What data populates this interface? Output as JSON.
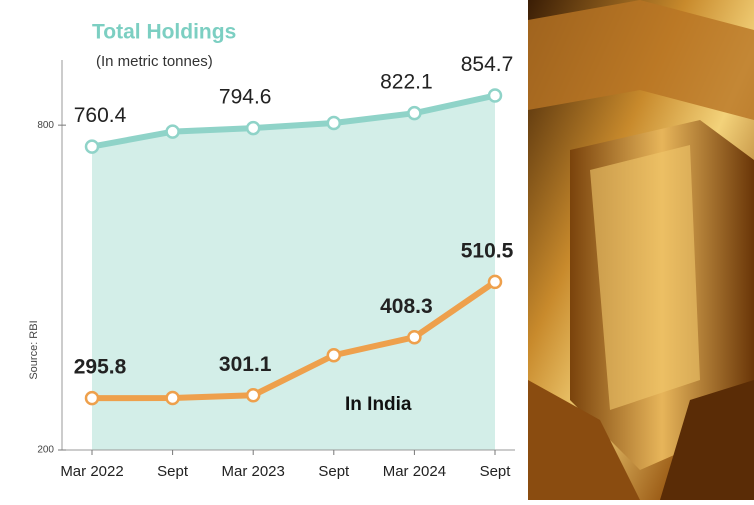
{
  "chart_data": {
    "type": "line",
    "title": "Total Holdings",
    "subtitle": "(In metric tonnes)",
    "source": "Source: RBI",
    "annotation": "In India",
    "categories": [
      "Mar 2022",
      "Sept",
      "Mar 2023",
      "Sept",
      "Mar 2024",
      "Sept"
    ],
    "series": [
      {
        "name": "Total Holdings",
        "color": "#8fd3c8",
        "fill": "#d3eee8",
        "values": [
          760.4,
          788,
          794.6,
          804,
          822.1,
          854.7
        ],
        "value_labels": [
          "760.4",
          null,
          "794.6",
          null,
          "822.1",
          "854.7"
        ]
      },
      {
        "name": "In India",
        "color": "#eea04c",
        "fill": "#fbe1c7",
        "values": [
          295.8,
          296,
          301.1,
          375,
          408.3,
          510.5
        ],
        "value_labels": [
          "295.8",
          null,
          "301.1",
          null,
          "408.3",
          "510.5"
        ]
      }
    ],
    "ylim": [
      200,
      900
    ],
    "yticks": [
      200,
      800
    ]
  }
}
